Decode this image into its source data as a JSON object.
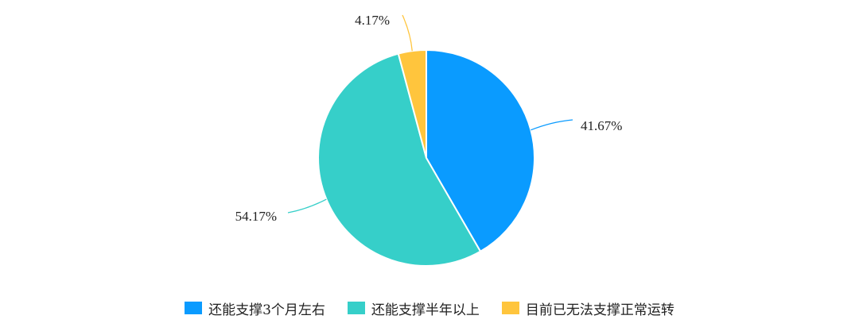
{
  "chart_data": {
    "type": "pie",
    "categories": [
      "还能支撑3个月左右",
      "还能支撑半年以上",
      "目前已无法支撑正常运转"
    ],
    "values": [
      41.67,
      54.17,
      4.17
    ],
    "data_labels": [
      "41.67%",
      "54.17%",
      "4.17%"
    ],
    "colors": [
      "#0a9bff",
      "#36cfc9",
      "#ffc53d"
    ],
    "start_angle": "12 o'clock",
    "direction": "clockwise",
    "legend": "bottom"
  }
}
